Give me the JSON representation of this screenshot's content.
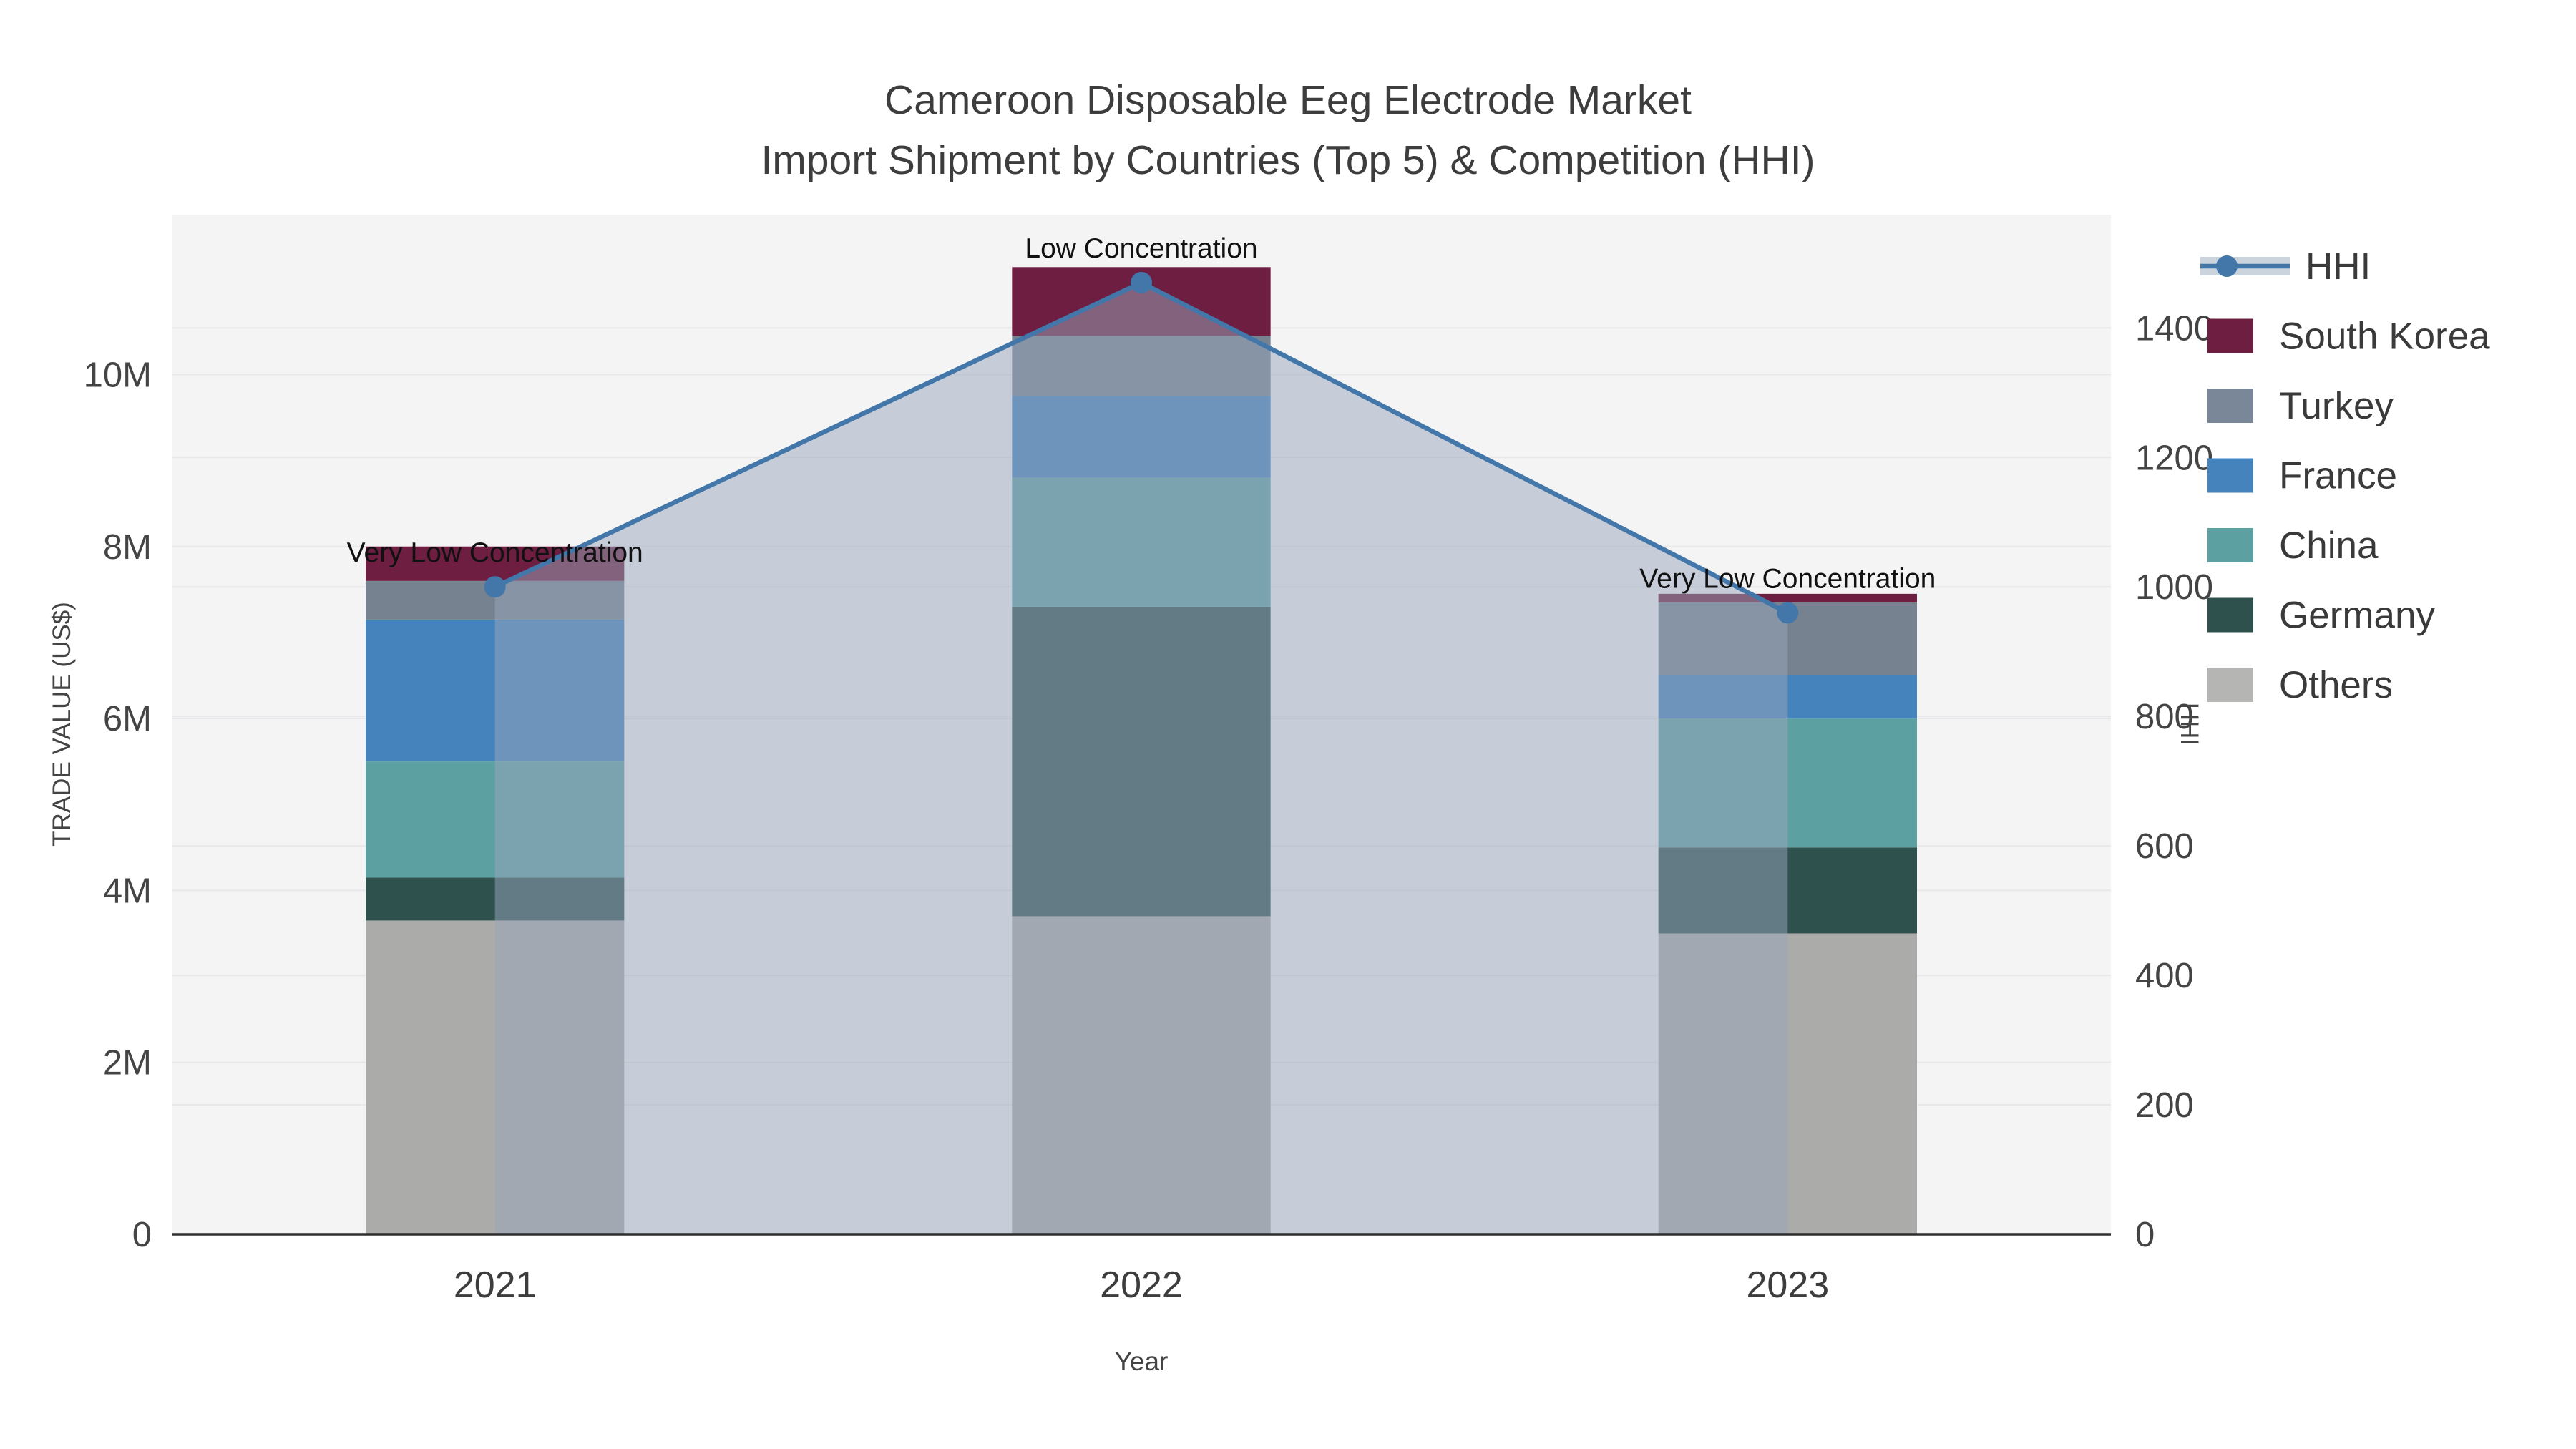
{
  "title": {
    "line1": "Cameroon Disposable Eeg Electrode Market",
    "line2": "Import Shipment by Countries (Top 5) & Competition (HHI)"
  },
  "chart_data": {
    "type": "combo",
    "subtype": "stacked-bar with overlay line and area fill",
    "categories": [
      "2021",
      "2022",
      "2023"
    ],
    "xlabel": "Year",
    "y_left": {
      "label": "TRADE VALUE (US$)",
      "tick_labels": [
        "0",
        "2M",
        "4M",
        "6M",
        "8M",
        "10M"
      ],
      "tick_values_usd_m": [
        0,
        2,
        4,
        6,
        8,
        10
      ],
      "axis_max_usd_m": 11.86,
      "grid": true
    },
    "y_right": {
      "label": "HHI",
      "tick_labels": [
        "0",
        "200",
        "400",
        "600",
        "800",
        "1000",
        "1200",
        "1400"
      ],
      "tick_values": [
        0,
        200,
        400,
        600,
        800,
        1000,
        1200,
        1400
      ],
      "axis_max": 1575,
      "grid": true
    },
    "stack_series_bottom_to_top": [
      {
        "name": "Others",
        "color": "#ABABA9",
        "values_usd_m": [
          3.65,
          3.7,
          3.5
        ]
      },
      {
        "name": "Germany",
        "color": "#2E514E",
        "values_usd_m": [
          0.5,
          3.6,
          1.0
        ]
      },
      {
        "name": "China",
        "color": "#5CA0A2",
        "values_usd_m": [
          1.35,
          1.5,
          1.5
        ]
      },
      {
        "name": "France",
        "color": "#4583BD",
        "values_usd_m": [
          1.65,
          0.95,
          0.5
        ]
      },
      {
        "name": "Turkey",
        "color": "#76828F",
        "values_usd_m": [
          0.45,
          0.7,
          0.85
        ]
      },
      {
        "name": "South Korea",
        "color": "#6E1E40",
        "values_usd_m": [
          0.4,
          0.8,
          0.1
        ]
      }
    ],
    "bar_totals_usd_m": [
      8.0,
      11.25,
      7.45
    ],
    "hhi_line": {
      "name": "HHI",
      "values": [
        1000,
        1470,
        960
      ],
      "line_color": "#4377A9",
      "marker_color": "#4377A9",
      "area_fill_color": "rgba(152,166,188,0.5)"
    },
    "annotations": [
      {
        "category": "2021",
        "text": "Very Low Concentration"
      },
      {
        "category": "2022",
        "text": "Low Concentration"
      },
      {
        "category": "2023",
        "text": "Very Low Concentration"
      }
    ],
    "legend": {
      "position": "right",
      "items": [
        {
          "label": "HHI",
          "type": "line",
          "color": "#4377A9",
          "band_color": "#CBD3DD"
        },
        {
          "label": "South Korea",
          "type": "swatch",
          "color": "#6E1E40"
        },
        {
          "label": "Turkey",
          "type": "swatch",
          "color": "#7A8799"
        },
        {
          "label": "France",
          "type": "swatch",
          "color": "#4583BD"
        },
        {
          "label": "China",
          "type": "swatch",
          "color": "#5CA0A2"
        },
        {
          "label": "Germany",
          "type": "swatch",
          "color": "#2E514E"
        },
        {
          "label": "Others",
          "type": "swatch",
          "color": "#B5B5B4"
        }
      ]
    },
    "style_colors": {
      "plot_background": "#f4f4f5",
      "gridline": "#e8e8ea",
      "axis_line": "#2e2e2e",
      "tick_text": "#444444",
      "annotation_text": "#111111"
    }
  }
}
